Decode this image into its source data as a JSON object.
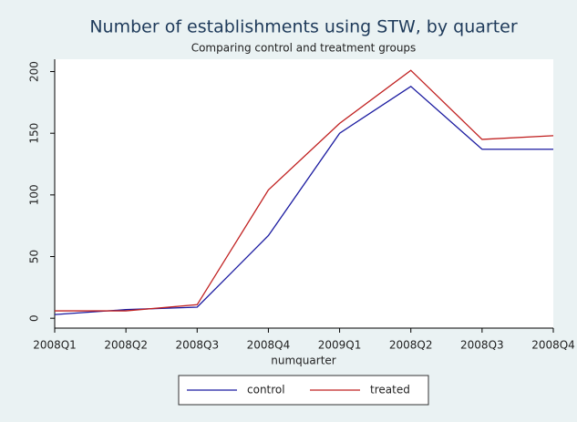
{
  "chart_data": {
    "type": "line",
    "title": "Number of establishments using STW, by quarter",
    "subtitle": "Comparing control and treatment groups",
    "x_label": "numquarter",
    "categories": [
      "2008Q1",
      "2008Q2",
      "2008Q3",
      "2008Q4",
      "2009Q1",
      "2008Q2",
      "2008Q3",
      "2008Q4"
    ],
    "series": [
      {
        "name": "control",
        "color": "#1a1aa0",
        "values": [
          3,
          7,
          9,
          67,
          150,
          188,
          137,
          137
        ]
      },
      {
        "name": "treated",
        "color": "#c02020",
        "values": [
          6,
          6,
          11,
          104,
          158,
          201,
          145,
          148
        ]
      }
    ],
    "ylim": [
      -8,
      210
    ],
    "yticks": [
      0,
      50,
      100,
      150,
      200
    ],
    "grid": false
  }
}
